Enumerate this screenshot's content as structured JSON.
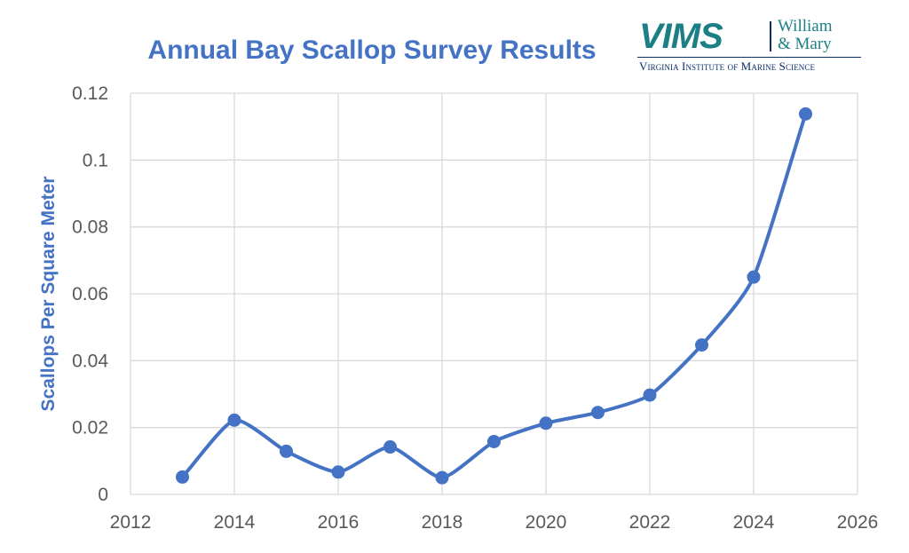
{
  "chart_data": {
    "type": "line",
    "title": "Annual Bay Scallop Survey Results",
    "xlabel": "",
    "ylabel": "Scallops Per Square Meter",
    "xlim": [
      2012,
      2026
    ],
    "ylim": [
      0,
      0.12
    ],
    "x_ticks": [
      "2012",
      "2014",
      "2016",
      "2018",
      "2020",
      "2022",
      "2024",
      "2026"
    ],
    "y_ticks": [
      "0",
      "0.02",
      "0.04",
      "0.06",
      "0.08",
      "0.1",
      "0.12"
    ],
    "grid": true,
    "legend": "none",
    "series": [
      {
        "x": [
          2013,
          2014,
          2015,
          2016,
          2017,
          2018,
          2019,
          2020,
          2021,
          2022,
          2023,
          2024,
          2025
        ],
        "values": [
          0.0052,
          0.0222,
          0.0129,
          0.0067,
          0.0142,
          0.005,
          0.0158,
          0.0213,
          0.0245,
          0.0297,
          0.0447,
          0.065,
          0.1138
        ],
        "color": "#4472c4"
      }
    ]
  },
  "logo": {
    "mark": "VIMS",
    "wordmark_line1": "William",
    "wordmark_line2": "& Mary",
    "subtitle": "Virginia Institute of Marine Science"
  },
  "colors": {
    "accent": "#4472c4",
    "title": "#4472c4",
    "tick_text": "#595959",
    "grid": "#d9d9d9",
    "logo_teal": "#1c7f86",
    "logo_navy": "#0a2f6b"
  }
}
